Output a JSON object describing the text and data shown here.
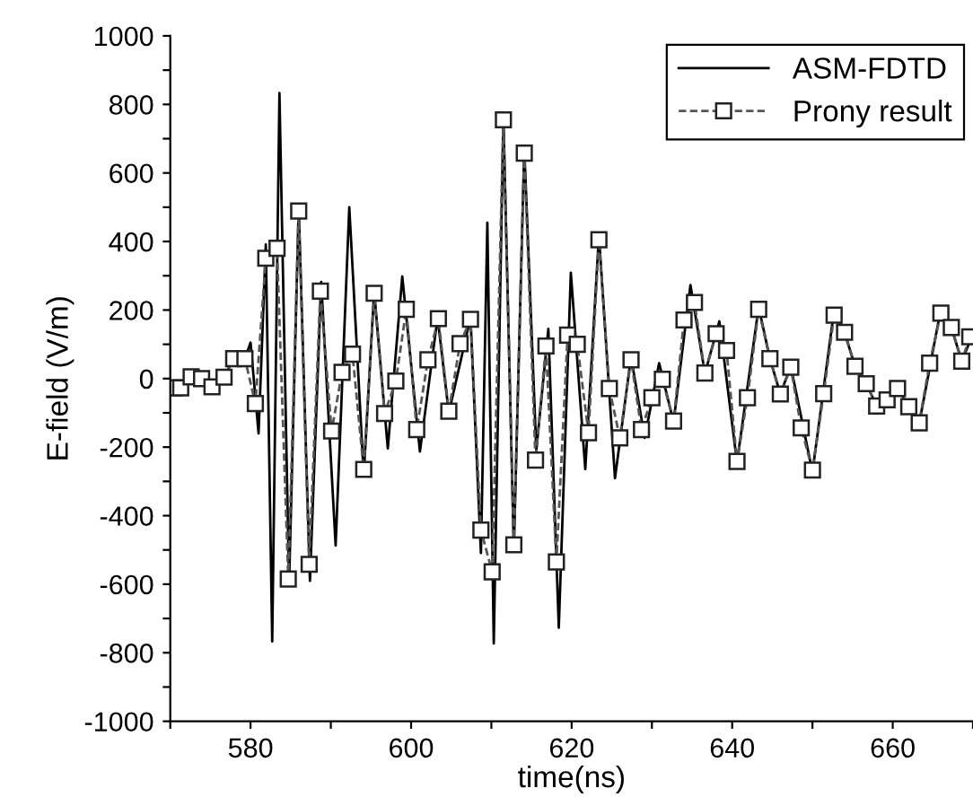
{
  "chart_data": {
    "type": "line",
    "xlabel": "time(ns)",
    "ylabel": "E-field (V/m)",
    "xlim": [
      570,
      670
    ],
    "ylim": [
      -1000,
      1000
    ],
    "xticks": [
      {
        "value": 570,
        "label": null
      },
      580,
      {
        "value": 590,
        "label": null
      },
      600,
      {
        "value": 610,
        "label": null
      },
      620,
      {
        "value": 630,
        "label": null
      },
      640,
      {
        "value": 650,
        "label": null
      },
      660,
      {
        "value": 670,
        "label": null
      }
    ],
    "yticks": [
      -1000,
      {
        "value": -900,
        "label": null
      },
      -800,
      {
        "value": -700,
        "label": null
      },
      -600,
      {
        "value": -500,
        "label": null
      },
      -400,
      {
        "value": -300,
        "label": null
      },
      -200,
      {
        "value": -100,
        "label": null
      },
      0,
      {
        "value": 100,
        "label": null
      },
      200,
      {
        "value": 300,
        "label": null
      },
      400,
      {
        "value": 500,
        "label": null
      },
      600,
      {
        "value": 700,
        "label": null
      },
      800,
      {
        "value": 900,
        "label": null
      },
      1000
    ],
    "grid": false,
    "legend": "top right",
    "series": [
      {
        "name": "ASM-FDTD",
        "color": "#000000",
        "marker": "none",
        "line_style": "solid",
        "x": [
          570.0,
          572.6,
          575.2,
          576.7,
          577.9,
          579.3,
          580.0,
          581.0,
          581.9,
          582.7,
          583.6,
          584.8,
          586.0,
          587.4,
          588.8,
          590.6,
          592.3,
          594.1,
          595.4,
          597.1,
          598.9,
          601.1,
          603.3,
          604.7,
          607.4,
          608.7,
          609.5,
          610.3,
          611.5,
          612.8,
          614.1,
          615.6,
          617.1,
          618.4,
          619.9,
          621.7,
          623.4,
          625.4,
          627.4,
          629.1,
          630.9,
          632.7,
          634.8,
          636.6,
          638.4,
          640.6,
          643.3,
          644.7,
          646.0,
          647.3,
          650.0,
          652.7,
          654.0,
          655.3,
          656.7,
          658.0,
          659.3,
          660.6,
          663.3,
          666.0,
          667.3,
          668.6,
          670.0
        ],
        "values": [
          -27,
          5,
          -24,
          4,
          58,
          58,
          105,
          -160,
          391,
          -767,
          833,
          -600,
          500,
          -590,
          282,
          -487,
          500,
          -282,
          255,
          -204,
          298,
          -213,
          178,
          -100,
          178,
          -509,
          455,
          -773,
          764,
          -500,
          673,
          -209,
          145,
          -727,
          309,
          -264,
          418,
          -291,
          64,
          -173,
          45,
          -127,
          273,
          15,
          167,
          -245,
          209,
          58,
          -45,
          36,
          -273,
          200,
          135,
          36,
          -15,
          -80,
          -62,
          -27,
          -131,
          204,
          149,
          51,
          130
        ]
      },
      {
        "name": "Prony result",
        "color": "#555555",
        "marker": "square",
        "line_style": "dashed",
        "x": [
          570.5,
          571.3,
          572.6,
          573.9,
          575.2,
          576.7,
          577.9,
          579.3,
          580.6,
          581.9,
          583.3,
          584.7,
          586.0,
          587.3,
          588.7,
          590.1,
          591.4,
          592.7,
          594.1,
          595.4,
          596.7,
          598.1,
          599.4,
          600.7,
          602.1,
          603.4,
          604.7,
          606.1,
          607.4,
          608.7,
          610.1,
          611.5,
          612.8,
          614.1,
          615.5,
          616.8,
          618.1,
          619.5,
          620.7,
          622.1,
          623.4,
          624.7,
          626.0,
          627.4,
          628.7,
          630.0,
          631.3,
          632.7,
          634.0,
          635.3,
          636.6,
          638.0,
          639.3,
          640.6,
          641.9,
          643.3,
          644.7,
          646.0,
          647.3,
          648.6,
          650.0,
          651.4,
          652.7,
          654.0,
          655.3,
          656.7,
          658.0,
          659.3,
          660.6,
          662.0,
          663.3,
          664.6,
          666.0,
          667.3,
          668.6,
          669.6
        ],
        "values": [
          -27,
          -27,
          5,
          0,
          -24,
          4,
          58,
          58,
          -73,
          351,
          380,
          -585,
          489,
          -542,
          255,
          -153,
          18,
          71,
          -265,
          249,
          -102,
          -7,
          202,
          -149,
          55,
          175,
          -95,
          102,
          173,
          -442,
          -564,
          755,
          -485,
          658,
          -238,
          95,
          -535,
          127,
          100,
          -158,
          405,
          -29,
          -173,
          55,
          -149,
          -56,
          -2,
          -124,
          171,
          222,
          16,
          131,
          82,
          -242,
          -56,
          202,
          58,
          -45,
          33,
          -144,
          -267,
          -44,
          185,
          135,
          36,
          -15,
          -80,
          -62,
          -29,
          -82,
          -129,
          45,
          191,
          149,
          51,
          122
        ]
      }
    ]
  }
}
